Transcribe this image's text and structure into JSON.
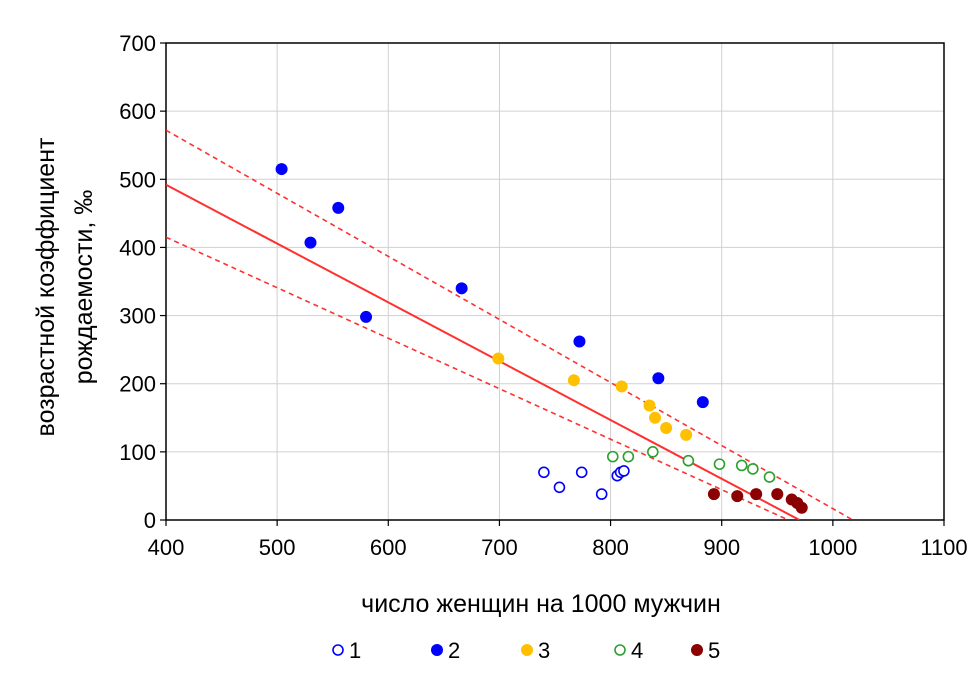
{
  "chart_data": {
    "type": "scatter",
    "xlabel": "число женщин на 1000 мужчин",
    "ylabel_line1": "возрастной коэффициент",
    "ylabel_line2": "рождаемости, ‰",
    "xlim": [
      400,
      1100
    ],
    "ylim": [
      0,
      700
    ],
    "xticks": [
      "400",
      "500",
      "600",
      "700",
      "800",
      "900",
      "1000",
      "1100"
    ],
    "yticks": [
      "0",
      "100",
      "200",
      "300",
      "400",
      "500",
      "600",
      "700"
    ],
    "grid": true,
    "legend_position": "bottom",
    "series": [
      {
        "name": "1",
        "color": "#0000ff",
        "marker": "open-circle",
        "points": [
          [
            740,
            70
          ],
          [
            754,
            48
          ],
          [
            774,
            70
          ],
          [
            792,
            38
          ],
          [
            806,
            65
          ],
          [
            809,
            70
          ],
          [
            812,
            72
          ]
        ]
      },
      {
        "name": "2",
        "color": "#0000ff",
        "marker": "filled-circle",
        "points": [
          [
            504,
            515
          ],
          [
            530,
            407
          ],
          [
            555,
            458
          ],
          [
            580,
            298
          ],
          [
            666,
            340
          ],
          [
            772,
            262
          ],
          [
            843,
            208
          ],
          [
            883,
            173
          ]
        ]
      },
      {
        "name": "3",
        "color": "#ffc000",
        "marker": "filled-circle",
        "points": [
          [
            699,
            237
          ],
          [
            767,
            205
          ],
          [
            810,
            196
          ],
          [
            835,
            168
          ],
          [
            840,
            150
          ],
          [
            850,
            135
          ],
          [
            868,
            125
          ]
        ]
      },
      {
        "name": "4",
        "color": "#2ca02c",
        "marker": "open-circle",
        "points": [
          [
            802,
            93
          ],
          [
            816,
            93
          ],
          [
            838,
            100
          ],
          [
            870,
            87
          ],
          [
            898,
            82
          ],
          [
            918,
            80
          ],
          [
            928,
            75
          ],
          [
            943,
            63
          ]
        ]
      },
      {
        "name": "5",
        "color": "#8b0000",
        "marker": "filled-circle",
        "points": [
          [
            893,
            38
          ],
          [
            914,
            35
          ],
          [
            931,
            38
          ],
          [
            950,
            38
          ],
          [
            963,
            30
          ],
          [
            968,
            25
          ],
          [
            972,
            18
          ]
        ]
      }
    ],
    "regression": {
      "color": "#ff3030",
      "line": [
        [
          400,
          492
        ],
        [
          970,
          0
        ]
      ],
      "ci_upper": [
        [
          400,
          572
        ],
        [
          1018,
          0
        ]
      ],
      "ci_lower": [
        [
          400,
          415
        ],
        [
          960,
          0
        ]
      ]
    }
  }
}
